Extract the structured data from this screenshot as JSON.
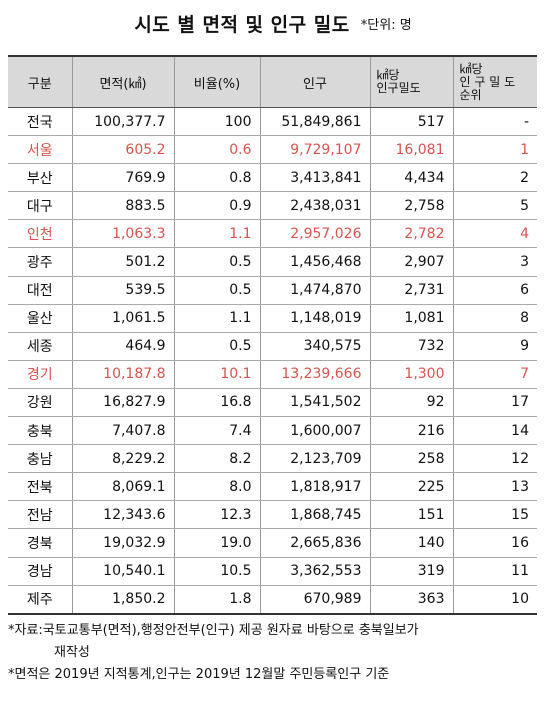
{
  "title": {
    "main": "시도 별 면적 및 인구 밀도",
    "unit": "*단위: 명"
  },
  "table": {
    "headers": {
      "region": "구분",
      "area": "면적(㎢)",
      "ratio": "비율(%)",
      "population": "인구",
      "density_line1": "㎢당",
      "density_line2": "인구밀도",
      "rank_line1": "㎢당",
      "rank_line2": "인 구 밀 도",
      "rank_line3": "순위"
    },
    "rows": [
      {
        "region": "전국",
        "area": "100,377.7",
        "ratio": "100",
        "population": "51,849,861",
        "density": "517",
        "rank": "-",
        "highlight": false
      },
      {
        "region": "서울",
        "area": "605.2",
        "ratio": "0.6",
        "population": "9,729,107",
        "density": "16,081",
        "rank": "1",
        "highlight": true
      },
      {
        "region": "부산",
        "area": "769.9",
        "ratio": "0.8",
        "population": "3,413,841",
        "density": "4,434",
        "rank": "2",
        "highlight": false
      },
      {
        "region": "대구",
        "area": "883.5",
        "ratio": "0.9",
        "population": "2,438,031",
        "density": "2,758",
        "rank": "5",
        "highlight": false
      },
      {
        "region": "인천",
        "area": "1,063.3",
        "ratio": "1.1",
        "population": "2,957,026",
        "density": "2,782",
        "rank": "4",
        "highlight": true
      },
      {
        "region": "광주",
        "area": "501.2",
        "ratio": "0.5",
        "population": "1,456,468",
        "density": "2,907",
        "rank": "3",
        "highlight": false
      },
      {
        "region": "대전",
        "area": "539.5",
        "ratio": "0.5",
        "population": "1,474,870",
        "density": "2,731",
        "rank": "6",
        "highlight": false
      },
      {
        "region": "울산",
        "area": "1,061.5",
        "ratio": "1.1",
        "population": "1,148,019",
        "density": "1,081",
        "rank": "8",
        "highlight": false
      },
      {
        "region": "세종",
        "area": "464.9",
        "ratio": "0.5",
        "population": "340,575",
        "density": "732",
        "rank": "9",
        "highlight": false
      },
      {
        "region": "경기",
        "area": "10,187.8",
        "ratio": "10.1",
        "population": "13,239,666",
        "density": "1,300",
        "rank": "7",
        "highlight": true
      },
      {
        "region": "강원",
        "area": "16,827.9",
        "ratio": "16.8",
        "population": "1,541,502",
        "density": "92",
        "rank": "17",
        "highlight": false
      },
      {
        "region": "충북",
        "area": "7,407.8",
        "ratio": "7.4",
        "population": "1,600,007",
        "density": "216",
        "rank": "14",
        "highlight": false
      },
      {
        "region": "충남",
        "area": "8,229.2",
        "ratio": "8.2",
        "population": "2,123,709",
        "density": "258",
        "rank": "12",
        "highlight": false
      },
      {
        "region": "전북",
        "area": "8,069.1",
        "ratio": "8.0",
        "population": "1,818,917",
        "density": "225",
        "rank": "13",
        "highlight": false
      },
      {
        "region": "전남",
        "area": "12,343.6",
        "ratio": "12.3",
        "population": "1,868,745",
        "density": "151",
        "rank": "15",
        "highlight": false
      },
      {
        "region": "경북",
        "area": "19,032.9",
        "ratio": "19.0",
        "population": "2,665,836",
        "density": "140",
        "rank": "16",
        "highlight": false
      },
      {
        "region": "경남",
        "area": "10,540.1",
        "ratio": "10.5",
        "population": "3,362,553",
        "density": "319",
        "rank": "11",
        "highlight": false
      },
      {
        "region": "제주",
        "area": "1,850.2",
        "ratio": "1.8",
        "population": "670,989",
        "density": "363",
        "rank": "10",
        "highlight": false
      }
    ]
  },
  "notes": {
    "source_line1": "*자료:국토교통부(면적),행정안전부(인구) 제공 원자료 바탕으로 충북일보가",
    "source_line2": "재작성",
    "basis": "*면적은 2019년 지적통계,인구는 2019년 12월말 주민등록인구 기준"
  },
  "colors": {
    "highlight_text": "#d9534f",
    "header_bg": "#d9d9d9"
  }
}
